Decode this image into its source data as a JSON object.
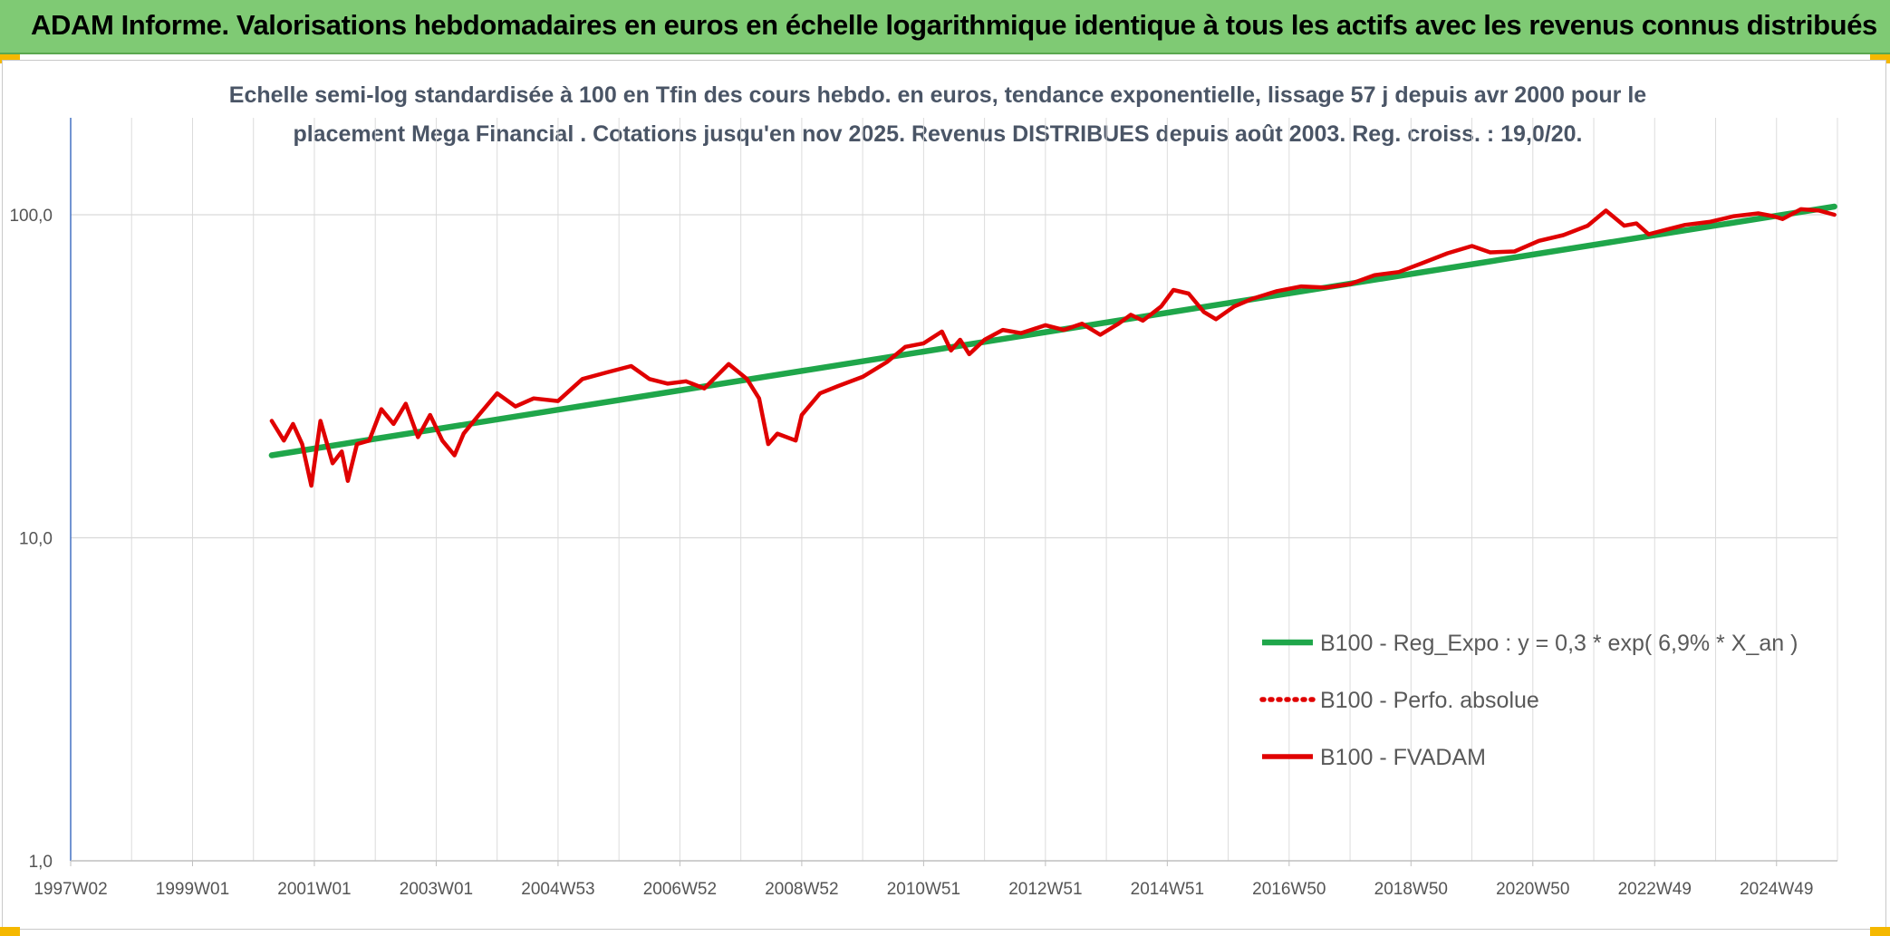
{
  "banner": {
    "title": "ADAM Informe. Valorisations hebdomadaires en euros en échelle logarithmique identique à tous les actifs avec les revenus connus distribués"
  },
  "chart_data": {
    "type": "line",
    "subtitle_line1": "Echelle semi-log standardisée à 100 en Tfin des cours hebdo. en euros, tendance exponentielle, lissage 57 j depuis avr 2000 pour le",
    "subtitle_line2": "placement Mega Financial . Cotations jusqu'en nov 2025. Revenus DISTRIBUES depuis août 2003. Reg. croiss. : 19,0/20.",
    "y_scale": "log",
    "ylim": [
      1,
      100
    ],
    "y_ticks": [
      {
        "value": 1,
        "label": "1,0"
      },
      {
        "value": 10,
        "label": "10,0"
      },
      {
        "value": 100,
        "label": "100,0"
      }
    ],
    "xlim": [
      1997.0,
      2026.0
    ],
    "x_ticks": [
      {
        "value": 1997.0,
        "label": "1997W02"
      },
      {
        "value": 1999.0,
        "label": "1999W01"
      },
      {
        "value": 2001.0,
        "label": "2001W01"
      },
      {
        "value": 2003.0,
        "label": "2003W01"
      },
      {
        "value": 2005.0,
        "label": "2004W53"
      },
      {
        "value": 2007.0,
        "label": "2006W52"
      },
      {
        "value": 2009.0,
        "label": "2008W52"
      },
      {
        "value": 2011.0,
        "label": "2010W51"
      },
      {
        "value": 2013.0,
        "label": "2012W51"
      },
      {
        "value": 2015.0,
        "label": "2014W51"
      },
      {
        "value": 2017.0,
        "label": "2016W50"
      },
      {
        "value": 2019.0,
        "label": "2018W50"
      },
      {
        "value": 2021.0,
        "label": "2020W50"
      },
      {
        "value": 2023.0,
        "label": "2022W49"
      },
      {
        "value": 2025.0,
        "label": "2024W49"
      }
    ],
    "grid": true,
    "legend_position": "bottom-right",
    "series": [
      {
        "name": "B100 - Reg_Expo : y = 0,3 * exp( 6,9% *  X_an )",
        "color": "#1fa64a",
        "style": "solid-thick",
        "x": [
          2000.3,
          2025.95
        ],
        "y": [
          18.0,
          106.0
        ]
      },
      {
        "name": "B100 - Perfo. absolue",
        "color": "#e00000",
        "style": "dotted",
        "x": [],
        "y": []
      },
      {
        "name": "B100 - FVADAM",
        "color": "#e00000",
        "style": "solid",
        "x": [
          2000.3,
          2000.5,
          2000.65,
          2000.8,
          2000.95,
          2001.1,
          2001.3,
          2001.45,
          2001.55,
          2001.7,
          2001.9,
          2002.1,
          2002.3,
          2002.5,
          2002.7,
          2002.9,
          2003.1,
          2003.3,
          2003.45,
          2003.7,
          2004.0,
          2004.3,
          2004.6,
          2005.0,
          2005.4,
          2005.8,
          2006.2,
          2006.5,
          2006.8,
          2007.1,
          2007.4,
          2007.8,
          2008.1,
          2008.3,
          2008.45,
          2008.6,
          2008.9,
          2009.0,
          2009.3,
          2009.6,
          2010.0,
          2010.4,
          2010.7,
          2011.0,
          2011.3,
          2011.45,
          2011.6,
          2011.75,
          2012.0,
          2012.3,
          2012.6,
          2013.0,
          2013.3,
          2013.6,
          2013.9,
          2014.2,
          2014.4,
          2014.6,
          2014.9,
          2015.1,
          2015.35,
          2015.6,
          2015.8,
          2016.1,
          2016.4,
          2016.8,
          2017.2,
          2017.6,
          2018.0,
          2018.4,
          2018.8,
          2019.2,
          2019.6,
          2020.0,
          2020.3,
          2020.7,
          2021.1,
          2021.5,
          2021.9,
          2022.2,
          2022.5,
          2022.7,
          2022.9,
          2023.2,
          2023.5,
          2023.9,
          2024.3,
          2024.7,
          2024.95,
          2025.1,
          2025.4,
          2025.7,
          2025.95
        ],
        "y": [
          23.0,
          20.0,
          22.5,
          19.5,
          14.5,
          23.0,
          17.0,
          18.5,
          15.0,
          19.5,
          20.0,
          25.0,
          22.5,
          26.0,
          20.5,
          24.0,
          20.0,
          18.0,
          21.0,
          24.0,
          28.0,
          25.5,
          27.0,
          26.5,
          31.0,
          32.5,
          34.0,
          31.0,
          30.0,
          30.5,
          29.0,
          34.5,
          31.0,
          27.0,
          19.5,
          21.0,
          20.0,
          24.0,
          28.0,
          29.5,
          31.5,
          35.0,
          39.0,
          40.0,
          43.5,
          38.0,
          41.0,
          37.0,
          41.0,
          44.0,
          43.0,
          45.5,
          44.0,
          46.0,
          42.5,
          46.0,
          49.0,
          47.0,
          52.0,
          58.5,
          57.0,
          50.0,
          47.5,
          52.0,
          55.0,
          58.0,
          60.0,
          59.5,
          61.0,
          65.0,
          66.5,
          71.0,
          76.0,
          80.0,
          76.5,
          77.0,
          83.0,
          86.5,
          92.5,
          103.0,
          92.5,
          94.0,
          87.0,
          90.0,
          93.0,
          95.0,
          99.0,
          101.0,
          99.0,
          97.0,
          104.0,
          103.0,
          100.0
        ]
      }
    ]
  }
}
